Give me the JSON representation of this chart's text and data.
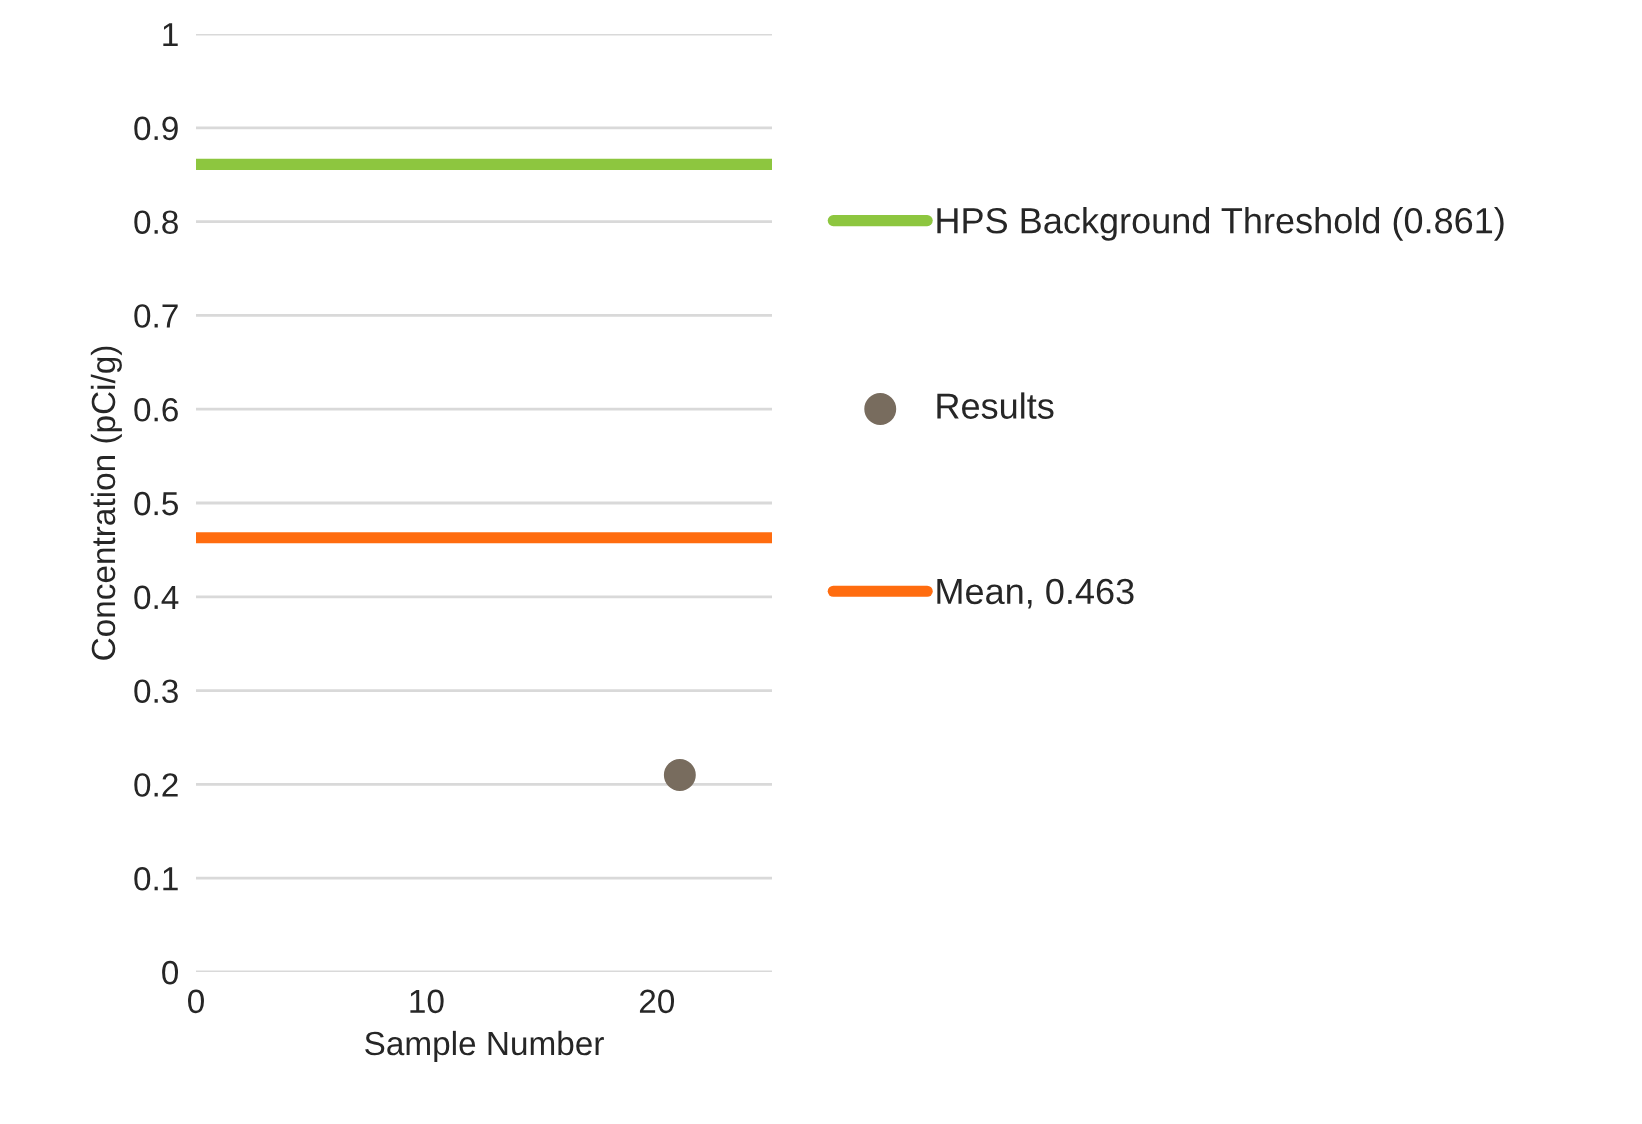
{
  "chart_data": {
    "type": "scatter",
    "xlabel": "Sample Number",
    "ylabel": "Concentration (pCi/g)",
    "xlim": [
      0,
      25
    ],
    "xticks": [
      0,
      10,
      20
    ],
    "ylim": [
      0,
      1
    ],
    "yticks": [
      0,
      0.1,
      0.2,
      0.3,
      0.4,
      0.5,
      0.6,
      0.7,
      0.8,
      0.9,
      1
    ],
    "grid": "y",
    "legend": "right",
    "series": [
      {
        "name": "HPS Background Threshold (0.861)",
        "type": "line",
        "color": "#8dc63f",
        "x": [
          0,
          25
        ],
        "values": [
          0.861,
          0.861
        ],
        "marker": "none"
      },
      {
        "name": "Results",
        "color": "#786c5e",
        "x": [
          21
        ],
        "values": [
          0.21
        ],
        "marker": "circle"
      },
      {
        "name": "Mean, 0.463",
        "type": "line",
        "color": "#ff6c0f",
        "x": [
          0,
          25
        ],
        "values": [
          0.463,
          0.463
        ],
        "marker": "none"
      }
    ]
  }
}
